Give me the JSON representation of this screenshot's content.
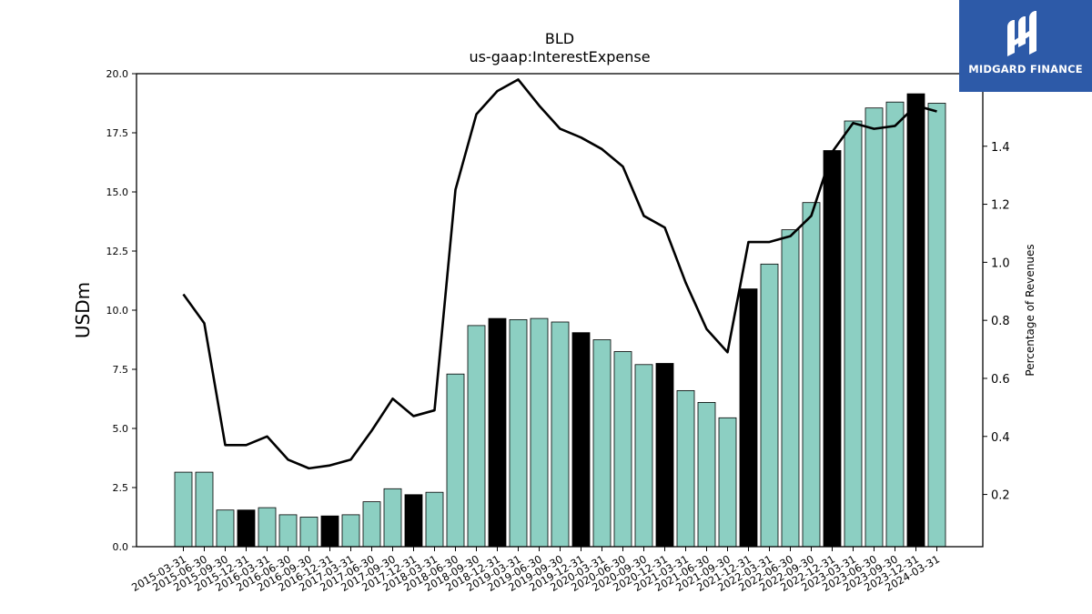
{
  "chart_data": {
    "type": "bar+line",
    "title": "BLD",
    "subtitle": "us-gaap:InterestExpense",
    "ylabel_left": "USDm",
    "ylabel_right": "Percentage of Revenues",
    "ylim_left": [
      0,
      20
    ],
    "ylim_right": [
      0.02,
      1.65
    ],
    "yticks_left": [
      "0.0",
      "2.5",
      "5.0",
      "7.5",
      "10.0",
      "12.5",
      "15.0",
      "17.5",
      "20.0"
    ],
    "yticks_right": [
      "0.2",
      "0.4",
      "0.6",
      "0.8",
      "1.0",
      "1.2",
      "1.4"
    ],
    "categories": [
      "2015-03-31",
      "2015-06-30",
      "2015-09-30",
      "2015-12-31",
      "2016-03-31",
      "2016-06-30",
      "2016-09-30",
      "2016-12-31",
      "2017-03-31",
      "2017-06-30",
      "2017-09-30",
      "2017-12-31",
      "2018-03-31",
      "2018-06-30",
      "2018-09-30",
      "2018-12-31",
      "2019-03-31",
      "2019-06-30",
      "2019-09-30",
      "2019-12-31",
      "2020-03-31",
      "2020-06-30",
      "2020-09-30",
      "2020-12-31",
      "2021-03-31",
      "2021-06-30",
      "2021-09-30",
      "2021-12-31",
      "2022-03-31",
      "2022-06-30",
      "2022-09-30",
      "2022-12-31",
      "2023-03-31",
      "2023-06-30",
      "2023-09-30",
      "2023-12-31",
      "2024-03-31"
    ],
    "series": [
      {
        "type": "bar",
        "values": [
          3.15,
          3.15,
          1.55,
          1.55,
          1.65,
          1.35,
          1.25,
          1.3,
          1.35,
          1.9,
          2.45,
          2.2,
          2.3,
          7.3,
          9.35,
          9.65,
          9.6,
          9.65,
          9.5,
          9.05,
          8.75,
          8.25,
          7.7,
          7.75,
          6.6,
          6.1,
          5.45,
          10.9,
          11.95,
          13.4,
          14.55,
          16.75,
          18.0,
          18.55,
          18.8,
          19.15,
          18.75
        ],
        "highlight": [
          false,
          false,
          false,
          true,
          false,
          false,
          false,
          true,
          false,
          false,
          false,
          true,
          false,
          false,
          false,
          true,
          false,
          false,
          false,
          true,
          false,
          false,
          false,
          true,
          false,
          false,
          false,
          true,
          false,
          false,
          false,
          true,
          false,
          false,
          false,
          true,
          false
        ]
      },
      {
        "type": "line",
        "axis": "right",
        "values": [
          0.89,
          0.79,
          0.37,
          0.37,
          0.4,
          0.32,
          0.29,
          0.3,
          0.32,
          0.42,
          0.53,
          0.47,
          0.49,
          1.25,
          1.51,
          1.59,
          1.63,
          1.54,
          1.46,
          1.43,
          1.39,
          1.33,
          1.16,
          1.12,
          0.93,
          0.77,
          0.69,
          1.07,
          1.07,
          1.09,
          1.16,
          1.38,
          1.48,
          1.46,
          1.47,
          1.54,
          1.52
        ]
      }
    ],
    "colors": {
      "bar": "#8ccfc2",
      "bar_highlight": "#000000",
      "line": "#000000",
      "axis": "#000000"
    },
    "grid": false
  },
  "logo": {
    "text": "MIDGARD FINANCE",
    "background": "#2d5aa8"
  }
}
